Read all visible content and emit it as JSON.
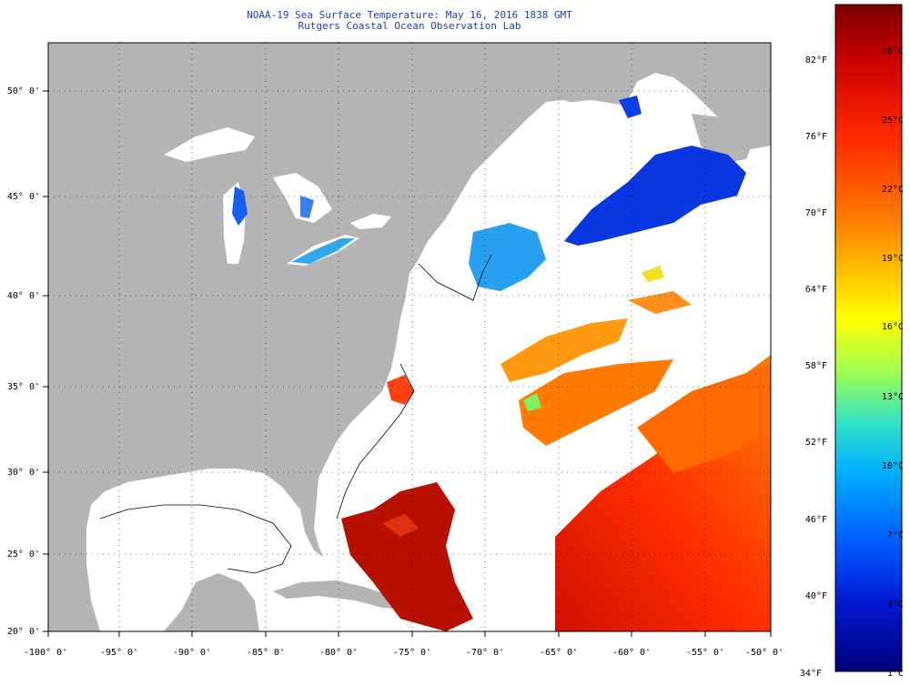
{
  "header": {
    "title": "NOAA-19 Sea Surface Temperature:  May 16, 2016 1838 GMT",
    "subtitle": "Rutgers Coastal Ocean Observation Lab"
  },
  "map": {
    "lon_ticks": [
      "-100° 0'",
      "-95° 0'",
      "-90° 0'",
      "-85° 0'",
      "-80° 0'",
      "-75° 0'",
      "-70° 0'",
      "-65° 0'",
      "-60° 0'",
      "-55° 0'",
      "-50° 0'"
    ],
    "lat_ticks": [
      "50° 0'",
      "45° 0'",
      "40° 0'",
      "35° 0'",
      "30° 0'",
      "25° 0'",
      "20° 0'"
    ],
    "land_color": "#b4b4b4",
    "ocean_nodata_color": "#ffffff"
  },
  "colorbar": {
    "fahrenheit_labels": [
      "82°F",
      "76°F",
      "70°F",
      "64°F",
      "58°F",
      "52°F",
      "46°F",
      "40°F",
      "34°F"
    ],
    "celsius_labels": [
      "28°C",
      "25°C",
      "22°C",
      "19°C",
      "16°C",
      "13°C",
      "10°C",
      "7°C",
      "4°C",
      "1°C"
    ],
    "gradient": [
      "#7a0000",
      "#c80000",
      "#ff2a00",
      "#ff7a00",
      "#ffd200",
      "#ffff00",
      "#a0ff50",
      "#30e0c8",
      "#00b0ff",
      "#0060ff",
      "#0018d0",
      "#00007a"
    ]
  }
}
